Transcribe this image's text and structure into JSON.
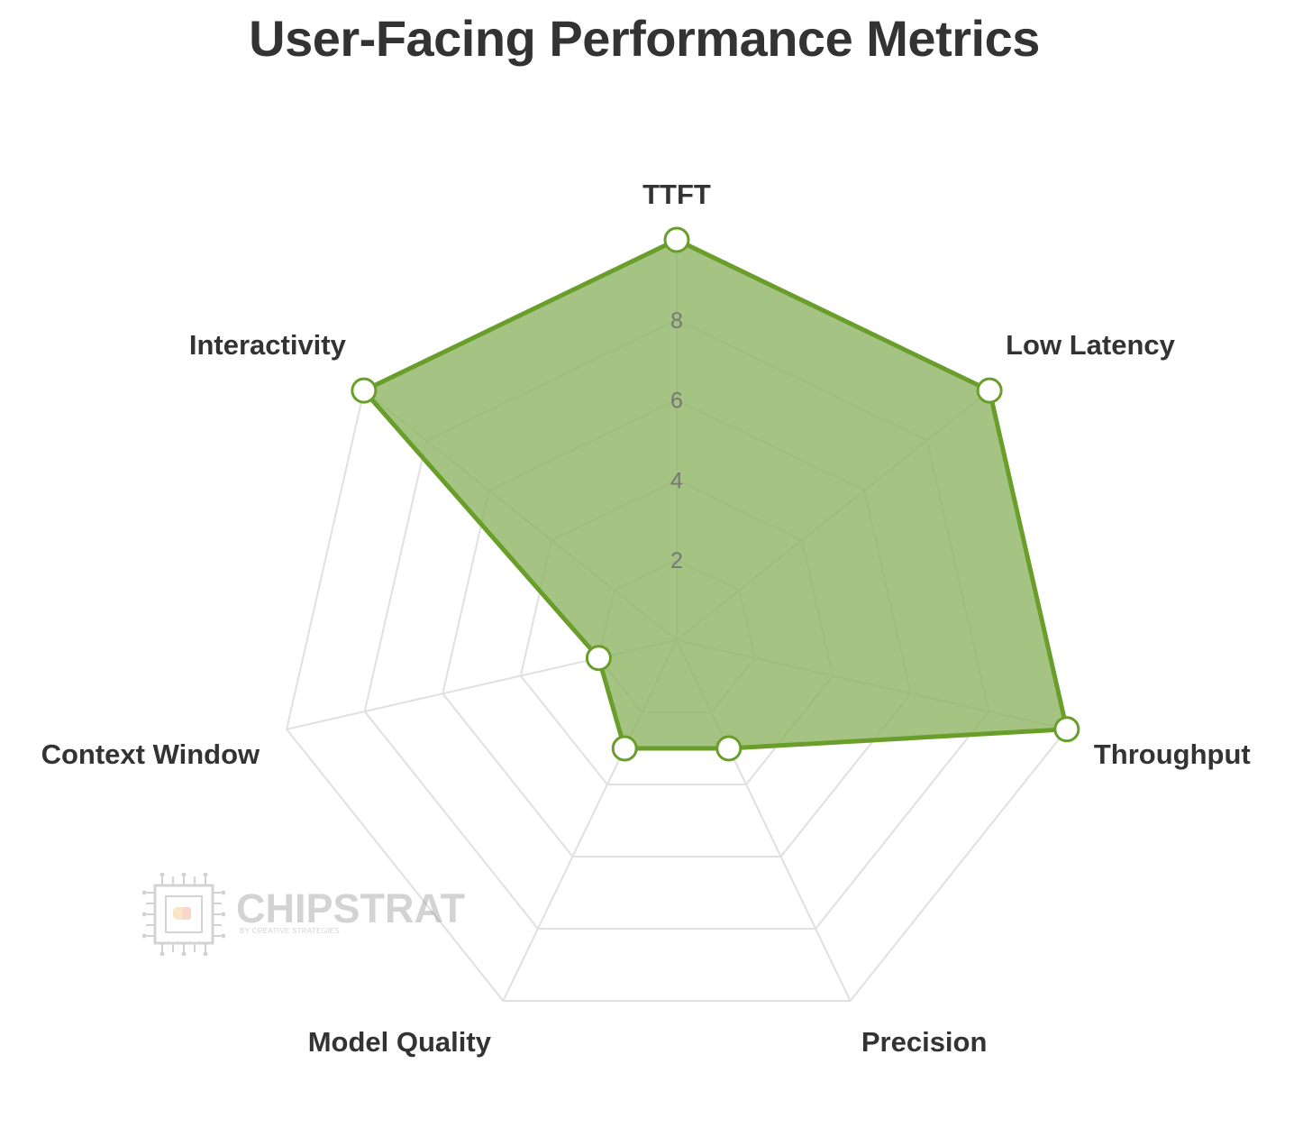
{
  "chart_data": {
    "type": "radar",
    "title": "User-Facing Performance Metrics",
    "axes": [
      "TTFT",
      "Low Latency",
      "Throughput",
      "Precision",
      "Model Quality",
      "Context Window",
      "Interactivity"
    ],
    "series": [
      {
        "values": [
          10,
          10,
          10,
          3,
          3,
          2,
          10
        ],
        "color": "#6a9e2a",
        "fill": "#8fb463"
      }
    ],
    "rlim": [
      0,
      10
    ],
    "ticks": [
      2,
      4,
      6,
      8
    ],
    "tick_labels": [
      "2",
      "4",
      "6",
      "8"
    ],
    "grid": true,
    "grid_color": "#e0e0e0"
  },
  "watermark": {
    "name": "CHIPSTRAT",
    "tagline": "BY CREATIVE STRATEGIES"
  }
}
